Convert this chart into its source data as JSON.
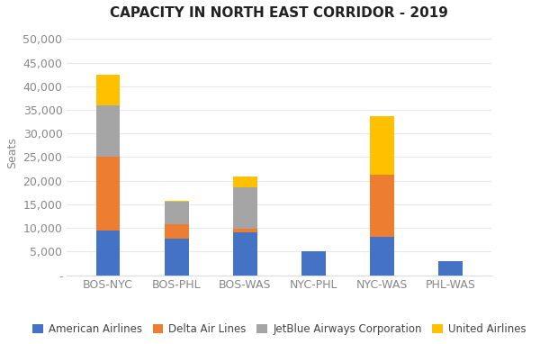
{
  "title": "CAPACITY IN NORTH EAST CORRIDOR - 2019",
  "categories": [
    "BOS-NYC",
    "BOS-PHL",
    "BOS-WAS",
    "NYC-PHL",
    "NYC-WAS",
    "PHL-WAS"
  ],
  "series": {
    "American Airlines": [
      9500,
      7800,
      9000,
      5000,
      8200,
      2900
    ],
    "Delta Air Lines": [
      15500,
      3000,
      900,
      0,
      13000,
      0
    ],
    "JetBlue Airways Corporation": [
      11000,
      4700,
      8800,
      0,
      0,
      0
    ],
    "United Airlines": [
      6500,
      200,
      2200,
      0,
      12500,
      0
    ]
  },
  "colors": {
    "American Airlines": "#4472C4",
    "Delta Air Lines": "#ED7D31",
    "JetBlue Airways Corporation": "#A5A5A5",
    "United Airlines": "#FFC000"
  },
  "ylabel": "Seats",
  "ylim": [
    0,
    52000
  ],
  "yticks": [
    0,
    5000,
    10000,
    15000,
    20000,
    25000,
    30000,
    35000,
    40000,
    45000,
    50000
  ],
  "background_color": "#FFFFFF",
  "title_fontsize": 11,
  "axis_fontsize": 9,
  "legend_fontsize": 8.5
}
